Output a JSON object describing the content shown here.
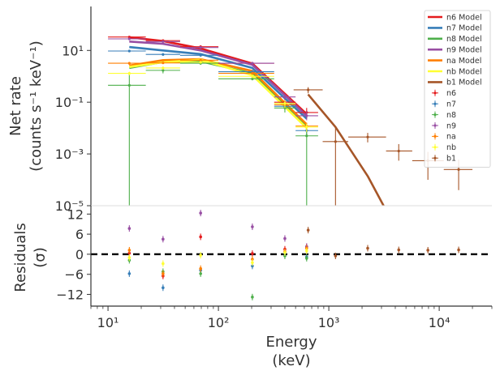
{
  "chart_data": [
    {
      "type": "line",
      "panel": "spectrum",
      "ylabel_line1": "Net rate",
      "ylabel_line2": "(counts s⁻¹ keV⁻¹)",
      "xscale": "log",
      "yscale": "log",
      "xlim": [
        7,
        30000
      ],
      "ylim": [
        1e-05,
        500
      ],
      "yticks": [
        {
          "value": 10,
          "label": "10¹"
        },
        {
          "value": 0.1,
          "label": "10⁻¹"
        },
        {
          "value": 0.001,
          "label": "10⁻³"
        },
        {
          "value": 1e-05,
          "label": "10⁻⁵"
        }
      ],
      "legend_position": "top-right",
      "legend": [
        {
          "label": "n6 Model",
          "kind": "line",
          "color": "#e41a1c"
        },
        {
          "label": "n7 Model",
          "kind": "line",
          "color": "#377eb8"
        },
        {
          "label": "n8 Model",
          "kind": "line",
          "color": "#4daf4a"
        },
        {
          "label": "n9 Model",
          "kind": "line",
          "color": "#984ea3"
        },
        {
          "label": "na Model",
          "kind": "line",
          "color": "#ff7f00"
        },
        {
          "label": "nb Model",
          "kind": "line",
          "color": "#ffff33"
        },
        {
          "label": "b1 Model",
          "kind": "line",
          "color": "#a65628"
        },
        {
          "label": "n6",
          "kind": "point",
          "color": "#e41a1c"
        },
        {
          "label": "n7",
          "kind": "point",
          "color": "#377eb8"
        },
        {
          "label": "n8",
          "kind": "point",
          "color": "#4daf4a"
        },
        {
          "label": "n9",
          "kind": "point",
          "color": "#984ea3"
        },
        {
          "label": "na",
          "kind": "point",
          "color": "#ff7f00"
        },
        {
          "label": "nb",
          "kind": "point",
          "color": "#ffff33"
        },
        {
          "label": "b1",
          "kind": "point",
          "color": "#a65628"
        }
      ],
      "models": [
        {
          "name": "n6 Model",
          "color": "#e41a1c",
          "x": [
            15.6,
            31.5,
            69,
            203,
            630
          ],
          "y": [
            32,
            23,
            12,
            3.1,
            0.035
          ]
        },
        {
          "name": "n7 Model",
          "color": "#377eb8",
          "x": [
            15.6,
            31.5,
            69,
            203,
            630
          ],
          "y": [
            13.5,
            10,
            7.2,
            2.1,
            0.023
          ]
        },
        {
          "name": "n8 Model",
          "color": "#4daf4a",
          "x": [
            15.6,
            31.5,
            69,
            203,
            630
          ],
          "y": [
            2.1,
            3.6,
            3.8,
            1.3,
            0.012
          ]
        },
        {
          "name": "n9 Model",
          "color": "#984ea3",
          "x": [
            15.6,
            31.5,
            69,
            203,
            630
          ],
          "y": [
            22,
            18,
            10,
            2.8,
            0.03
          ]
        },
        {
          "name": "na Model",
          "color": "#ff7f00",
          "x": [
            15.6,
            31.5,
            69,
            203,
            630
          ],
          "y": [
            2.6,
            4.2,
            4.6,
            1.6,
            0.014
          ]
        },
        {
          "name": "nb Model",
          "color": "#ffff33",
          "x": [
            15.6,
            31.5,
            69,
            203,
            630
          ],
          "y": [
            2.3,
            3.5,
            4.4,
            1.1,
            0.01
          ]
        },
        {
          "name": "b1 Model",
          "color": "#a65628",
          "x": [
            650,
            1150,
            2250,
            4300,
            7900,
            15000
          ],
          "y": [
            0.2,
            0.011,
            0.00014,
            8e-07,
            1e-07,
            1e-08
          ]
        }
      ],
      "points": [
        {
          "name": "n6",
          "color": "#e41a1c",
          "data": [
            {
              "x": 15.6,
              "xlo": 10,
              "xhi": 22,
              "y": 33,
              "ylo": 31,
              "yhi": 35
            },
            {
              "x": 31.5,
              "xlo": 22,
              "xhi": 45,
              "y": 24,
              "ylo": 22,
              "yhi": 26
            },
            {
              "x": 69,
              "xlo": 45,
              "xhi": 100,
              "y": 14,
              "ylo": 12.5,
              "yhi": 15.5
            },
            {
              "x": 203,
              "xlo": 100,
              "xhi": 320,
              "y": 3.2,
              "ylo": 2.8,
              "yhi": 3.6
            },
            {
              "x": 400,
              "xlo": 320,
              "xhi": 500,
              "y": 0.1,
              "ylo": 0.07,
              "yhi": 0.14
            },
            {
              "x": 630,
              "xlo": 500,
              "xhi": 800,
              "y": 0.04,
              "ylo": 0.025,
              "yhi": 0.06
            }
          ]
        },
        {
          "name": "n7",
          "color": "#377eb8",
          "data": [
            {
              "x": 15.6,
              "xlo": 10,
              "xhi": 22,
              "y": 9.5,
              "ylo": 8.5,
              "yhi": 10.5
            },
            {
              "x": 31.5,
              "xlo": 22,
              "xhi": 45,
              "y": 7,
              "ylo": 6.2,
              "yhi": 7.8
            },
            {
              "x": 69,
              "xlo": 45,
              "xhi": 100,
              "y": 6.5,
              "ylo": 5.8,
              "yhi": 7.2
            },
            {
              "x": 203,
              "xlo": 100,
              "xhi": 320,
              "y": 1.5,
              "ylo": 1.3,
              "yhi": 1.7
            },
            {
              "x": 400,
              "xlo": 320,
              "xhi": 500,
              "y": 0.07,
              "ylo": 0.05,
              "yhi": 0.1
            },
            {
              "x": 630,
              "xlo": 500,
              "xhi": 800,
              "y": 0.008,
              "ylo": 0.005,
              "yhi": 0.012
            }
          ]
        },
        {
          "name": "n8",
          "color": "#4daf4a",
          "data": [
            {
              "x": 15.6,
              "xlo": 10,
              "xhi": 22,
              "y": 0.45,
              "ylo": 1e-05,
              "yhi": 1.4
            },
            {
              "x": 31.5,
              "xlo": 22,
              "xhi": 45,
              "y": 1.7,
              "ylo": 1.3,
              "yhi": 2.1
            },
            {
              "x": 69,
              "xlo": 45,
              "xhi": 100,
              "y": 3.2,
              "ylo": 2.8,
              "yhi": 3.6
            },
            {
              "x": 203,
              "xlo": 100,
              "xhi": 320,
              "y": 0.8,
              "ylo": 0.7,
              "yhi": 0.9
            },
            {
              "x": 400,
              "xlo": 320,
              "xhi": 500,
              "y": 0.06,
              "ylo": 0.04,
              "yhi": 0.08
            },
            {
              "x": 630,
              "xlo": 500,
              "xhi": 800,
              "y": 0.005,
              "ylo": 1e-05,
              "yhi": 0.01
            }
          ]
        },
        {
          "name": "n9",
          "color": "#984ea3",
          "data": [
            {
              "x": 15.6,
              "xlo": 10,
              "xhi": 22,
              "y": 28,
              "ylo": 26,
              "yhi": 30
            },
            {
              "x": 31.5,
              "xlo": 22,
              "xhi": 45,
              "y": 22,
              "ylo": 20,
              "yhi": 24
            },
            {
              "x": 69,
              "xlo": 45,
              "xhi": 100,
              "y": 13,
              "ylo": 12,
              "yhi": 14
            },
            {
              "x": 203,
              "xlo": 100,
              "xhi": 320,
              "y": 3.2,
              "ylo": 2.9,
              "yhi": 3.5
            },
            {
              "x": 400,
              "xlo": 320,
              "xhi": 500,
              "y": 0.16,
              "ylo": 0.12,
              "yhi": 0.2
            },
            {
              "x": 630,
              "xlo": 500,
              "xhi": 800,
              "y": 0.03,
              "ylo": 0.02,
              "yhi": 0.045
            }
          ]
        },
        {
          "name": "na",
          "color": "#ff7f00",
          "data": [
            {
              "x": 15.6,
              "xlo": 10,
              "xhi": 22,
              "y": 3.2,
              "ylo": 2.8,
              "yhi": 3.6
            },
            {
              "x": 31.5,
              "xlo": 22,
              "xhi": 45,
              "y": 3.3,
              "ylo": 3,
              "yhi": 3.6
            },
            {
              "x": 69,
              "xlo": 45,
              "xhi": 100,
              "y": 4.2,
              "ylo": 3.8,
              "yhi": 4.6
            },
            {
              "x": 203,
              "xlo": 100,
              "xhi": 320,
              "y": 1.3,
              "ylo": 1.1,
              "yhi": 1.5
            },
            {
              "x": 400,
              "xlo": 320,
              "xhi": 500,
              "y": 0.08,
              "ylo": 0.06,
              "yhi": 0.1
            },
            {
              "x": 630,
              "xlo": 500,
              "xhi": 800,
              "y": 0.012,
              "ylo": 0.008,
              "yhi": 0.016
            }
          ]
        },
        {
          "name": "nb",
          "color": "#ffff33",
          "data": [
            {
              "x": 15.6,
              "xlo": 10,
              "xhi": 22,
              "y": 1.3,
              "ylo": 1.1,
              "yhi": 1.5
            },
            {
              "x": 31.5,
              "xlo": 22,
              "xhi": 45,
              "y": 2.1,
              "ylo": 1.8,
              "yhi": 2.4
            },
            {
              "x": 69,
              "xlo": 45,
              "xhi": 100,
              "y": 3.5,
              "ylo": 3.1,
              "yhi": 3.9
            },
            {
              "x": 203,
              "xlo": 100,
              "xhi": 320,
              "y": 1,
              "ylo": 0.85,
              "yhi": 1.15
            },
            {
              "x": 400,
              "xlo": 320,
              "xhi": 500,
              "y": 0.09,
              "ylo": 0.06,
              "yhi": 0.12
            },
            {
              "x": 630,
              "xlo": 500,
              "xhi": 800,
              "y": 0.011,
              "ylo": 0.007,
              "yhi": 0.015
            }
          ]
        },
        {
          "name": "b1",
          "color": "#a65628",
          "data": [
            {
              "x": 650,
              "xlo": 480,
              "xhi": 880,
              "y": 0.3,
              "ylo": 0.22,
              "yhi": 0.38
            },
            {
              "x": 1150,
              "xlo": 880,
              "xhi": 1500,
              "y": 0.003,
              "ylo": 1e-05,
              "yhi": 0.012
            },
            {
              "x": 2250,
              "xlo": 1500,
              "xhi": 3300,
              "y": 0.0045,
              "ylo": 0.0028,
              "yhi": 0.0065
            },
            {
              "x": 4300,
              "xlo": 3300,
              "xhi": 5700,
              "y": 0.0013,
              "ylo": 0.00055,
              "yhi": 0.0024
            },
            {
              "x": 7900,
              "xlo": 5700,
              "xhi": 11000,
              "y": 0.00055,
              "ylo": 0.0001,
              "yhi": 0.0012
            },
            {
              "x": 15000,
              "xlo": 11000,
              "xhi": 20000,
              "y": 0.00025,
              "ylo": 4e-05,
              "yhi": 0.0006
            }
          ]
        }
      ]
    },
    {
      "type": "scatter",
      "panel": "residuals",
      "xlabel_line1": "Energy",
      "xlabel_line2": "(keV)",
      "ylabel_line1": "Residuals",
      "ylabel_line2": "(σ)",
      "xscale": "log",
      "xlim": [
        7,
        30000
      ],
      "ylim": [
        -15.5,
        14.5
      ],
      "yticks": [
        {
          "value": 12,
          "label": "12"
        },
        {
          "value": 6,
          "label": "6"
        },
        {
          "value": 0,
          "label": "0"
        },
        {
          "value": -6,
          "label": "−6"
        },
        {
          "value": -12,
          "label": "−12"
        }
      ],
      "xticks": [
        {
          "value": 10,
          "label": "10¹"
        },
        {
          "value": 100,
          "label": "10²"
        },
        {
          "value": 1000,
          "label": "10³"
        },
        {
          "value": 10000,
          "label": "10⁴"
        }
      ],
      "zero_line": 0,
      "series": [
        {
          "name": "n6",
          "color": "#e41a1c",
          "x": [
            15.6,
            31.5,
            69,
            203,
            400,
            630
          ],
          "y": [
            0.3,
            -6.5,
            5.2,
            0.2,
            1.5,
            2.2
          ]
        },
        {
          "name": "n7",
          "color": "#377eb8",
          "x": [
            15.6,
            31.5,
            69,
            203,
            400,
            630
          ],
          "y": [
            -5.8,
            -10,
            -4.8,
            -3.5,
            0.3,
            -0.8
          ]
        },
        {
          "name": "n8",
          "color": "#4daf4a",
          "x": [
            15.6,
            31.5,
            69,
            203,
            400,
            630
          ],
          "y": [
            -1.8,
            -5.2,
            -5.8,
            -12.8,
            -0.5,
            -1.2
          ]
        },
        {
          "name": "n9",
          "color": "#984ea3",
          "x": [
            15.6,
            31.5,
            69,
            203,
            400,
            630
          ],
          "y": [
            7.7,
            4.5,
            12.3,
            8.2,
            4.7,
            2.3
          ]
        },
        {
          "name": "na",
          "color": "#ff7f00",
          "x": [
            15.6,
            31.5,
            69,
            203,
            400,
            630
          ],
          "y": [
            1.2,
            -5.8,
            -4.3,
            -1.5,
            0.8,
            1.8
          ]
        },
        {
          "name": "nb",
          "color": "#ffff33",
          "x": [
            15.6,
            31.5,
            69,
            203,
            400,
            630
          ],
          "y": [
            -1,
            -2.8,
            -0.3,
            -2.5,
            0.5,
            1
          ]
        },
        {
          "name": "b1",
          "color": "#a65628",
          "x": [
            650,
            1150,
            2250,
            4300,
            7900,
            15000
          ],
          "y": [
            7.2,
            -0.5,
            1.8,
            1.3,
            1.2,
            1.3
          ]
        }
      ]
    }
  ]
}
